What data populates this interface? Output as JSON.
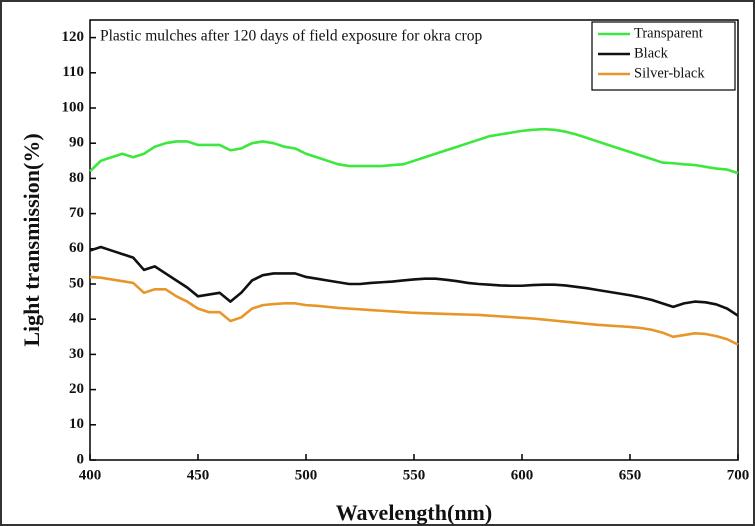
{
  "chart_data": {
    "type": "line",
    "title": "Plastic mulches after 120 days of field exposure for okra crop",
    "x_label": "Wavelength(nm)",
    "y_label": "Light transmission(%)",
    "x": [
      400,
      405,
      410,
      415,
      420,
      425,
      430,
      435,
      440,
      445,
      450,
      455,
      460,
      465,
      470,
      475,
      480,
      485,
      490,
      495,
      500,
      505,
      510,
      515,
      520,
      525,
      530,
      535,
      540,
      545,
      550,
      555,
      560,
      565,
      570,
      575,
      580,
      585,
      590,
      595,
      600,
      605,
      610,
      615,
      620,
      625,
      630,
      635,
      640,
      645,
      650,
      655,
      660,
      665,
      670,
      675,
      680,
      685,
      690,
      695,
      700
    ],
    "series": [
      {
        "name": "Transparent",
        "color": "#3be83b",
        "values": [
          82,
          85,
          86,
          87,
          86,
          87,
          89,
          90,
          90.5,
          90.5,
          89.5,
          89.5,
          89.5,
          88,
          88.5,
          90,
          90.5,
          90,
          89,
          88.5,
          87,
          86,
          85,
          84,
          83.5,
          83.5,
          83.5,
          83.5,
          83.8,
          84,
          85,
          86,
          87,
          88,
          89,
          90,
          91,
          92,
          92.5,
          93,
          93.5,
          93.8,
          94,
          93.8,
          93.3,
          92.5,
          91.5,
          90.5,
          89.5,
          88.5,
          87.5,
          86.5,
          85.5,
          84.5,
          84.3,
          84,
          83.8,
          83.3,
          82.8,
          82.5,
          81.5
        ]
      },
      {
        "name": "Black",
        "color": "#111111",
        "values": [
          59.5,
          60.5,
          59.5,
          58.5,
          57.5,
          54,
          55,
          53,
          51,
          49,
          46.5,
          47,
          47.5,
          45,
          47.5,
          51,
          52.5,
          53,
          53,
          53,
          52,
          51.5,
          51,
          50.5,
          50,
          50,
          50.3,
          50.5,
          50.7,
          51,
          51.3,
          51.5,
          51.5,
          51.2,
          50.8,
          50.3,
          50,
          49.8,
          49.6,
          49.5,
          49.5,
          49.7,
          49.8,
          49.8,
          49.6,
          49.2,
          48.8,
          48.3,
          47.8,
          47.3,
          46.8,
          46.2,
          45.5,
          44.5,
          43.5,
          44.5,
          45,
          44.8,
          44.2,
          43,
          41
        ]
      },
      {
        "name": "Silver-black",
        "color": "#e8952a",
        "values": [
          52,
          51.8,
          51.3,
          50.8,
          50.3,
          47.5,
          48.5,
          48.5,
          46.5,
          45,
          43,
          42,
          42,
          39.5,
          40.5,
          43,
          44,
          44.3,
          44.5,
          44.5,
          44,
          43.8,
          43.5,
          43.2,
          43,
          42.8,
          42.6,
          42.4,
          42.2,
          42,
          41.8,
          41.7,
          41.6,
          41.5,
          41.4,
          41.3,
          41.2,
          41,
          40.8,
          40.6,
          40.4,
          40.2,
          39.9,
          39.6,
          39.3,
          39,
          38.7,
          38.4,
          38.2,
          38,
          37.8,
          37.5,
          37,
          36.2,
          35,
          35.5,
          36,
          35.8,
          35.2,
          34.3,
          32.8
        ]
      }
    ],
    "xlim": [
      400,
      700
    ],
    "xticks": [
      400,
      450,
      500,
      550,
      600,
      650,
      700
    ],
    "ylim": [
      0,
      125
    ],
    "yticks": [
      0,
      10,
      20,
      30,
      40,
      50,
      60,
      70,
      80,
      90,
      100,
      110,
      120
    ],
    "legend": "upper right"
  }
}
